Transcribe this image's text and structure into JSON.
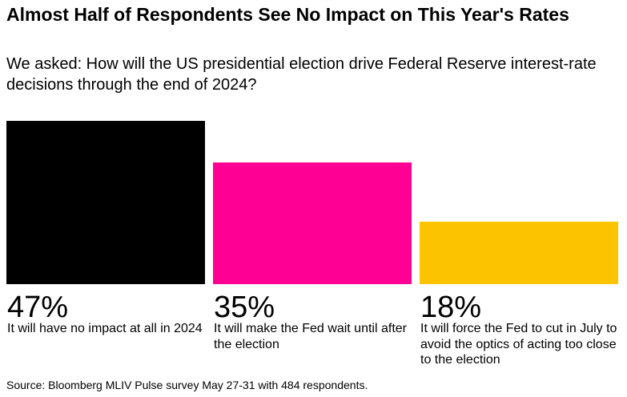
{
  "title": "Almost Half of Respondents See No Impact on This Year's Rates",
  "subtitle": "We asked: How will the US presidential election drive Federal Reserve interest-rate decisions through the end of 2024?",
  "source": "Source: Bloomberg MLIV Pulse survey May 27-31 with 484 respondents.",
  "chart_data": {
    "type": "bar",
    "title": "Almost Half of Respondents See No Impact on This Year's Rates",
    "subtitle": "We asked: How will the US presidential election drive Federal Reserve interest-rate decisions through the end of 2024?",
    "categories": [
      "It will have no impact at all in 2024",
      "It will make the Fed wait until after the election",
      "It will force the Fed to cut in July to avoid the optics of acting too close to the election"
    ],
    "values": [
      47,
      35,
      18
    ],
    "value_labels": [
      "47%",
      "35%",
      "18%"
    ],
    "colors": [
      "#000000",
      "#ff0095",
      "#fcc300"
    ],
    "grid": false,
    "legend": "none"
  }
}
